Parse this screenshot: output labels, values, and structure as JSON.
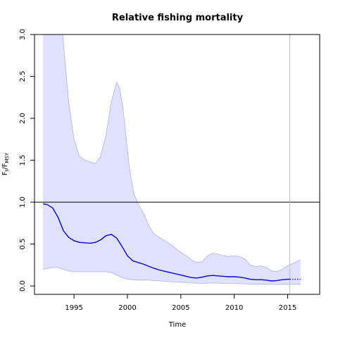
{
  "chart_data": {
    "type": "line",
    "title": "Relative fishing mortality",
    "xlabel": "Time",
    "ylabel": {
      "main": "F",
      "sub1": "t",
      "sep": "/F",
      "sub2": "MSY"
    },
    "xlim": [
      1991.3,
      2018.0
    ],
    "ylim": [
      -0.1,
      3.0
    ],
    "x_ticks": [
      1995,
      2000,
      2005,
      2010,
      2015
    ],
    "x_tick_labels": [
      "1995",
      "2000",
      "2005",
      "2010",
      "2015"
    ],
    "y_ticks": [
      0.0,
      0.5,
      1.0,
      1.5,
      2.0,
      2.5,
      3.0
    ],
    "y_tick_labels": [
      "0.0",
      "0.5",
      "1.0",
      "1.5",
      "2.0",
      "2.5",
      "3.0"
    ],
    "reference_line": {
      "y": 1.0,
      "color": "#000000"
    },
    "vertical_line": {
      "x": 2015.2,
      "color": "#c0c0c0"
    },
    "band": {
      "fill": "#e0e0ff",
      "stroke": "#b0b0f0",
      "upper": [
        [
          1992.1,
          3.5
        ],
        [
          1993.0,
          3.6
        ],
        [
          1993.8,
          3.2
        ],
        [
          1994.5,
          2.2
        ],
        [
          1995.0,
          1.75
        ],
        [
          1995.5,
          1.55
        ],
        [
          1996.0,
          1.5
        ],
        [
          1996.5,
          1.48
        ],
        [
          1997.0,
          1.46
        ],
        [
          1997.5,
          1.55
        ],
        [
          1998.0,
          1.8
        ],
        [
          1998.5,
          2.2
        ],
        [
          1999.0,
          2.43
        ],
        [
          1999.3,
          2.35
        ],
        [
          1999.6,
          2.1
        ],
        [
          1999.9,
          1.75
        ],
        [
          2000.2,
          1.4
        ],
        [
          2000.6,
          1.1
        ],
        [
          2001.0,
          0.98
        ],
        [
          2001.5,
          0.87
        ],
        [
          2002.0,
          0.72
        ],
        [
          2002.5,
          0.62
        ],
        [
          2003.0,
          0.58
        ],
        [
          2003.5,
          0.54
        ],
        [
          2004.0,
          0.5
        ],
        [
          2004.5,
          0.45
        ],
        [
          2005.0,
          0.4
        ],
        [
          2005.5,
          0.36
        ],
        [
          2006.0,
          0.31
        ],
        [
          2006.5,
          0.28
        ],
        [
          2007.0,
          0.29
        ],
        [
          2007.5,
          0.36
        ],
        [
          2008.0,
          0.39
        ],
        [
          2008.5,
          0.38
        ],
        [
          2009.0,
          0.36
        ],
        [
          2009.5,
          0.35
        ],
        [
          2010.0,
          0.36
        ],
        [
          2010.5,
          0.35
        ],
        [
          2011.0,
          0.32
        ],
        [
          2011.5,
          0.25
        ],
        [
          2012.0,
          0.23
        ],
        [
          2012.5,
          0.24
        ],
        [
          2013.0,
          0.22
        ],
        [
          2013.5,
          0.18
        ],
        [
          2014.0,
          0.17
        ],
        [
          2014.5,
          0.2
        ],
        [
          2015.0,
          0.24
        ],
        [
          2015.5,
          0.27
        ],
        [
          2016.0,
          0.3
        ],
        [
          2016.2,
          0.31
        ]
      ],
      "lower": [
        [
          1992.1,
          0.2
        ],
        [
          1993.0,
          0.22
        ],
        [
          1993.5,
          0.22
        ],
        [
          1994.0,
          0.2
        ],
        [
          1994.5,
          0.18
        ],
        [
          1995.0,
          0.17
        ],
        [
          1996.0,
          0.17
        ],
        [
          1997.0,
          0.17
        ],
        [
          1998.0,
          0.17
        ],
        [
          1998.5,
          0.16
        ],
        [
          1999.0,
          0.13
        ],
        [
          1999.5,
          0.1
        ],
        [
          2000.0,
          0.08
        ],
        [
          2001.0,
          0.07
        ],
        [
          2002.0,
          0.07
        ],
        [
          2003.0,
          0.06
        ],
        [
          2004.0,
          0.05
        ],
        [
          2005.0,
          0.045
        ],
        [
          2006.0,
          0.035
        ],
        [
          2007.0,
          0.03
        ],
        [
          2008.0,
          0.035
        ],
        [
          2009.0,
          0.03
        ],
        [
          2010.0,
          0.03
        ],
        [
          2011.0,
          0.025
        ],
        [
          2012.0,
          0.02
        ],
        [
          2013.0,
          0.02
        ],
        [
          2014.0,
          0.018
        ],
        [
          2015.0,
          0.02
        ],
        [
          2016.2,
          0.02
        ]
      ]
    },
    "series": [
      {
        "color": "#0000dd",
        "style": "solid",
        "x": [
          1992.1,
          1992.5,
          1993.0,
          1993.5,
          1994.0,
          1994.5,
          1995.0,
          1995.5,
          1996.0,
          1996.5,
          1997.0,
          1997.5,
          1998.0,
          1998.5,
          1999.0,
          1999.5,
          2000.0,
          2000.5,
          2001.0,
          2001.5,
          2002.0,
          2002.5,
          2003.0,
          2003.5,
          2004.0,
          2004.5,
          2005.0,
          2005.5,
          2006.0,
          2006.5,
          2007.0,
          2007.5,
          2008.0,
          2008.5,
          2009.0,
          2009.5,
          2010.0,
          2010.5,
          2011.0,
          2011.5,
          2012.0,
          2012.5,
          2013.0,
          2013.5,
          2014.0,
          2014.5,
          2015.0,
          2015.2
        ],
        "y": [
          0.98,
          0.97,
          0.93,
          0.82,
          0.66,
          0.58,
          0.54,
          0.52,
          0.515,
          0.51,
          0.52,
          0.55,
          0.6,
          0.615,
          0.57,
          0.47,
          0.36,
          0.3,
          0.28,
          0.26,
          0.235,
          0.21,
          0.19,
          0.175,
          0.16,
          0.145,
          0.13,
          0.115,
          0.1,
          0.095,
          0.105,
          0.12,
          0.125,
          0.12,
          0.115,
          0.11,
          0.11,
          0.105,
          0.095,
          0.08,
          0.075,
          0.075,
          0.07,
          0.06,
          0.065,
          0.075,
          0.08,
          0.08
        ]
      },
      {
        "color": "#0000dd",
        "style": "dotted",
        "x": [
          2015.2,
          2015.6,
          2016.0,
          2016.2
        ],
        "y": [
          0.08,
          0.08,
          0.08,
          0.08
        ]
      }
    ]
  }
}
